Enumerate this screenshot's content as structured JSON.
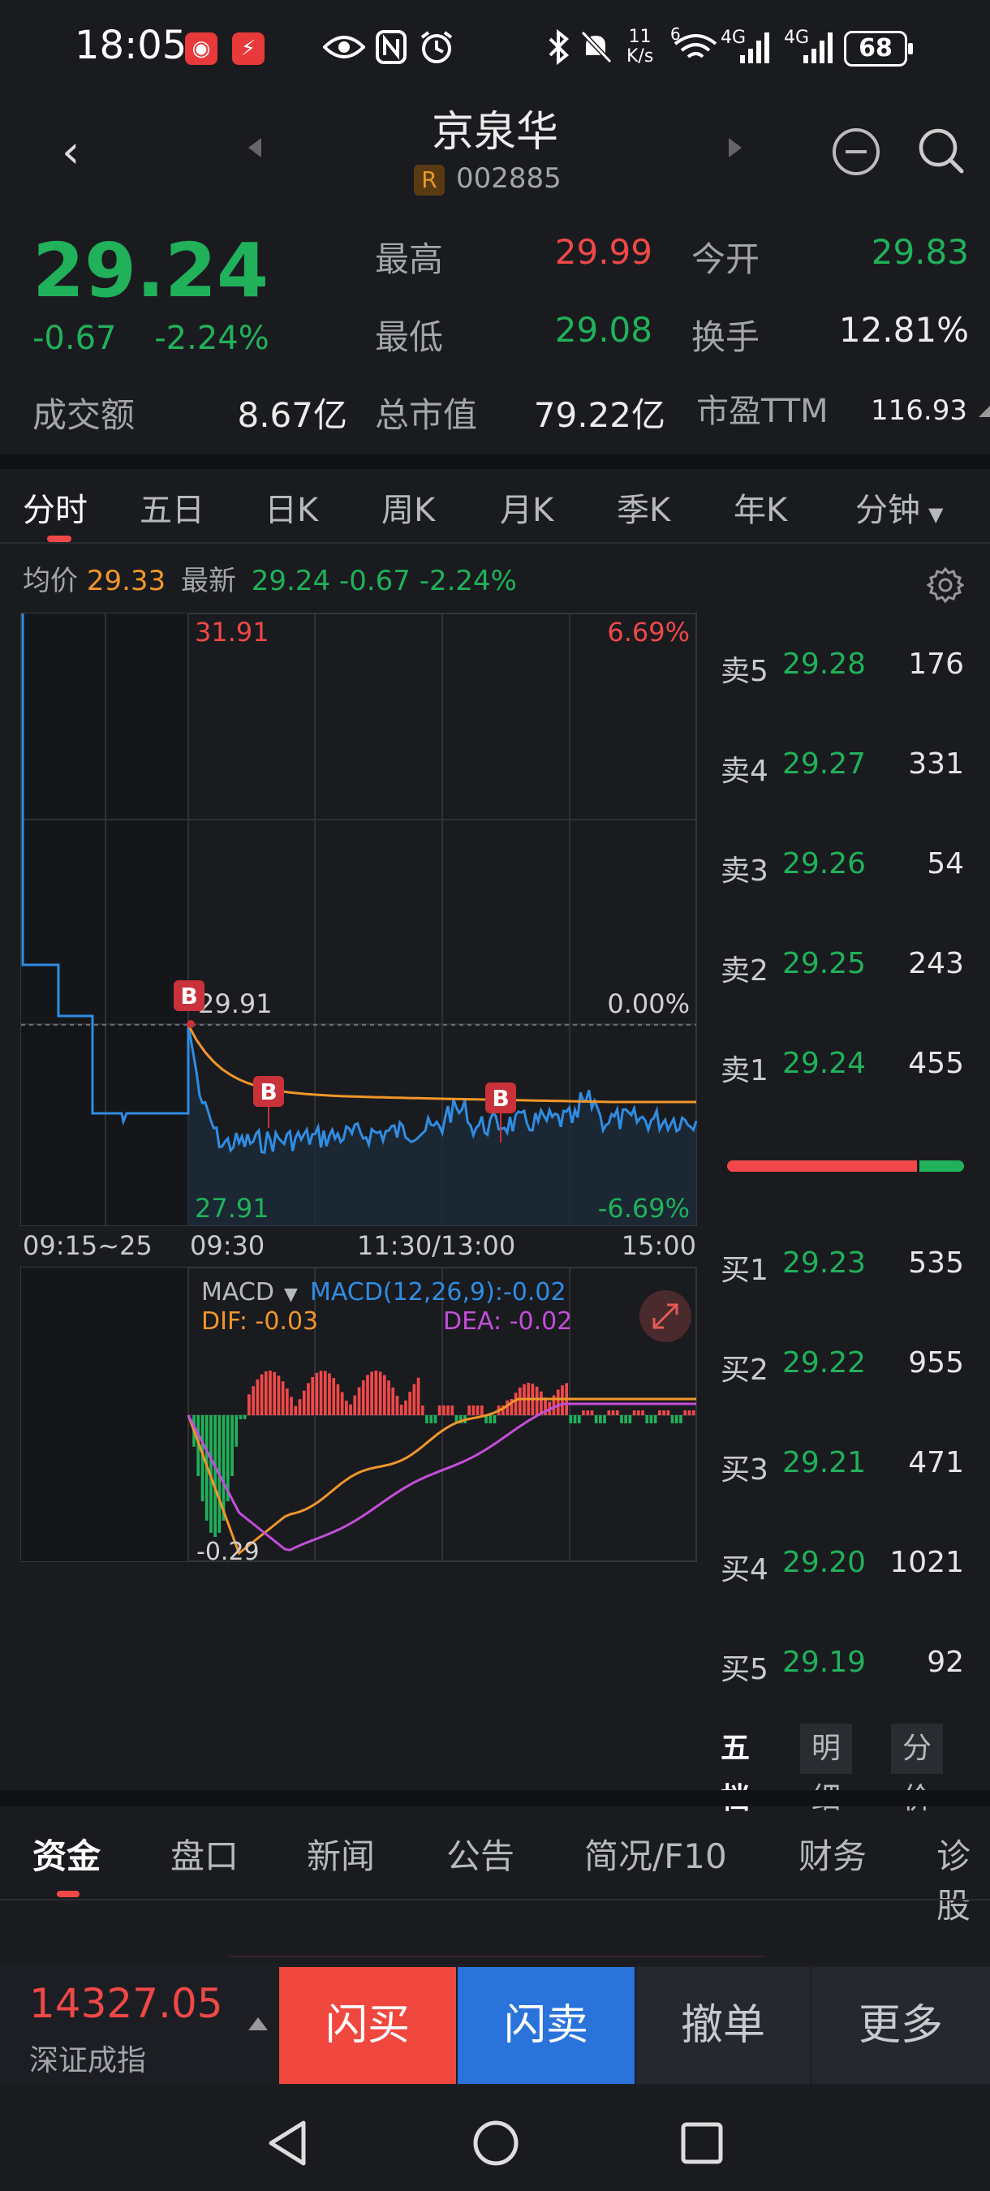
{
  "status_bar": {
    "time": "18:05",
    "net_speed_value": "11",
    "net_speed_unit": "K/s",
    "battery": "68",
    "signal_4g_a": "4G",
    "signal_4g_b": "4G",
    "wifi_badge": "6"
  },
  "header": {
    "title": "京泉华",
    "badge": "R",
    "code": "002885"
  },
  "quote": {
    "price": "29.24",
    "change": "-0.67",
    "change_pct": "-2.24%",
    "high_label": "最高",
    "high": "29.99",
    "open_label": "今开",
    "open": "29.83",
    "low_label": "最低",
    "low": "29.08",
    "turnover_label": "换手",
    "turnover": "12.81%",
    "amount_label": "成交额",
    "amount": "8.67亿",
    "mktcap_label": "总市值",
    "mktcap": "79.22亿",
    "pe_label": "市盈TTM",
    "pe": "116.93"
  },
  "period_tabs": [
    "分时",
    "五日",
    "日K",
    "周K",
    "月K",
    "季K",
    "年K",
    "分钟"
  ],
  "info_line": {
    "avg_label": "均价",
    "avg": "29.33",
    "latest_label": "最新",
    "latest": "29.24 -0.67 -2.24%"
  },
  "chart": {
    "y_top": "31.91",
    "y_mid": "29.91",
    "y_bottom": "27.91",
    "pct_top": "6.69%",
    "pct_mid": "0.00%",
    "pct_bottom": "-6.69%",
    "x_labels": [
      "09:15~25",
      "09:30",
      "11:30/13:00",
      "15:00"
    ],
    "marker": "B",
    "macd_label": "MACD",
    "macd_text": "MACD(12,26,9):-0.02",
    "dif_text": "DIF: -0.03",
    "dea_text": "DEA: -0.02",
    "macd_low": "-0.29",
    "colors": {
      "price_line": "#2f8de4",
      "avg_line": "#f0962a",
      "dif": "#f0962a",
      "dea": "#c24fd8",
      "up": "#f04848",
      "down": "#20b15a"
    }
  },
  "order_book": {
    "asks": [
      {
        "label": "卖5",
        "price": "29.28",
        "vol": "176"
      },
      {
        "label": "卖4",
        "price": "29.27",
        "vol": "331"
      },
      {
        "label": "卖3",
        "price": "29.26",
        "vol": "54"
      },
      {
        "label": "卖2",
        "price": "29.25",
        "vol": "243"
      },
      {
        "label": "卖1",
        "price": "29.24",
        "vol": "455"
      }
    ],
    "bids": [
      {
        "label": "买1",
        "price": "29.23",
        "vol": "535"
      },
      {
        "label": "买2",
        "price": "29.22",
        "vol": "955"
      },
      {
        "label": "买3",
        "price": "29.21",
        "vol": "471"
      },
      {
        "label": "买4",
        "price": "29.20",
        "vol": "1021"
      },
      {
        "label": "买5",
        "price": "29.19",
        "vol": "92"
      }
    ],
    "buy_ratio": 0.81,
    "tabs": [
      "五档",
      "明细",
      "分价"
    ]
  },
  "section_tabs": [
    "资金",
    "盘口",
    "新闻",
    "公告",
    "简况/F10",
    "财务",
    "诊股"
  ],
  "bottom_bar": {
    "index_value": "14327.05",
    "index_name": "深证成指",
    "flash_buy": "闪买",
    "flash_sell": "闪卖",
    "cancel": "撤单",
    "more": "更多"
  }
}
